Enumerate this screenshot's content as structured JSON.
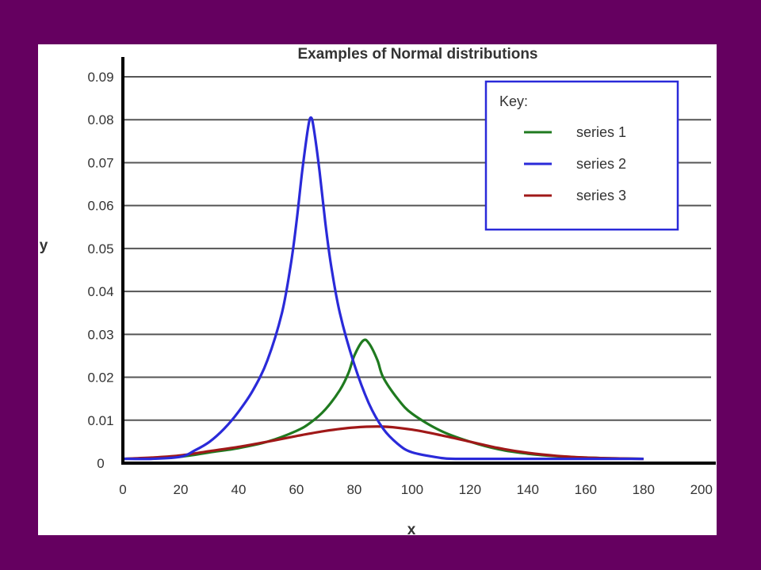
{
  "chart_data": {
    "type": "line",
    "title": "Examples of Normal distributions",
    "xlabel": "x",
    "ylabel": "y",
    "xlim": [
      0,
      205
    ],
    "ylim": [
      0,
      0.09
    ],
    "x_ticks": [
      0,
      20,
      40,
      60,
      80,
      100,
      120,
      140,
      160,
      180,
      200
    ],
    "y_ticks": [
      0,
      0.01,
      0.02,
      0.03,
      0.04,
      0.05,
      0.06,
      0.07,
      0.08,
      0.09
    ],
    "x_tick_labels": [
      "0",
      "20",
      "40",
      "60",
      "80",
      "100",
      "120",
      "140",
      "160",
      "180",
      "200"
    ],
    "y_tick_labels": [
      "0",
      "0.01",
      "0.02",
      "0.03",
      "0.04",
      "0.05",
      "0.06",
      "0.07",
      "0.08",
      "0.09"
    ],
    "grid": "horizontal",
    "legend": {
      "title": "Key:",
      "placement": "top-right"
    },
    "series": [
      {
        "name": "series 1",
        "color": "#1f7a1f",
        "points": [
          [
            0,
            0.001
          ],
          [
            10,
            0.0012
          ],
          [
            20,
            0.0015
          ],
          [
            30,
            0.0025
          ],
          [
            40,
            0.0035
          ],
          [
            50,
            0.005
          ],
          [
            60,
            0.0075
          ],
          [
            65,
            0.0095
          ],
          [
            70,
            0.0125
          ],
          [
            75,
            0.017
          ],
          [
            78,
            0.021
          ],
          [
            80,
            0.025
          ],
          [
            83,
            0.0285
          ],
          [
            85,
            0.028
          ],
          [
            88,
            0.024
          ],
          [
            90,
            0.02
          ],
          [
            95,
            0.015
          ],
          [
            100,
            0.0115
          ],
          [
            110,
            0.0075
          ],
          [
            120,
            0.005
          ],
          [
            130,
            0.0032
          ],
          [
            140,
            0.0022
          ],
          [
            150,
            0.0016
          ],
          [
            160,
            0.0013
          ],
          [
            170,
            0.0011
          ],
          [
            180,
            0.001
          ]
        ]
      },
      {
        "name": "series 2",
        "color": "#2a2ad9",
        "points": [
          [
            0,
            0.001
          ],
          [
            10,
            0.001
          ],
          [
            20,
            0.0015
          ],
          [
            25,
            0.003
          ],
          [
            30,
            0.005
          ],
          [
            35,
            0.008
          ],
          [
            40,
            0.012
          ],
          [
            45,
            0.017
          ],
          [
            50,
            0.024
          ],
          [
            55,
            0.035
          ],
          [
            58,
            0.046
          ],
          [
            60,
            0.056
          ],
          [
            62,
            0.068
          ],
          [
            64,
            0.078
          ],
          [
            65,
            0.0805
          ],
          [
            66,
            0.078
          ],
          [
            68,
            0.068
          ],
          [
            70,
            0.056
          ],
          [
            72,
            0.046
          ],
          [
            75,
            0.035
          ],
          [
            80,
            0.023
          ],
          [
            85,
            0.014
          ],
          [
            90,
            0.008
          ],
          [
            95,
            0.0045
          ],
          [
            100,
            0.0025
          ],
          [
            110,
            0.0012
          ],
          [
            115,
            0.001
          ],
          [
            120,
            0.001
          ],
          [
            180,
            0.001
          ]
        ]
      },
      {
        "name": "series 3",
        "color": "#a01818",
        "points": [
          [
            0,
            0.001
          ],
          [
            10,
            0.0013
          ],
          [
            20,
            0.0018
          ],
          [
            30,
            0.0028
          ],
          [
            40,
            0.0038
          ],
          [
            50,
            0.005
          ],
          [
            60,
            0.0063
          ],
          [
            70,
            0.0075
          ],
          [
            80,
            0.0083
          ],
          [
            90,
            0.0085
          ],
          [
            100,
            0.0078
          ],
          [
            110,
            0.0065
          ],
          [
            120,
            0.005
          ],
          [
            130,
            0.0035
          ],
          [
            140,
            0.0024
          ],
          [
            150,
            0.0017
          ],
          [
            160,
            0.0013
          ],
          [
            170,
            0.0011
          ],
          [
            180,
            0.001
          ]
        ]
      }
    ]
  }
}
